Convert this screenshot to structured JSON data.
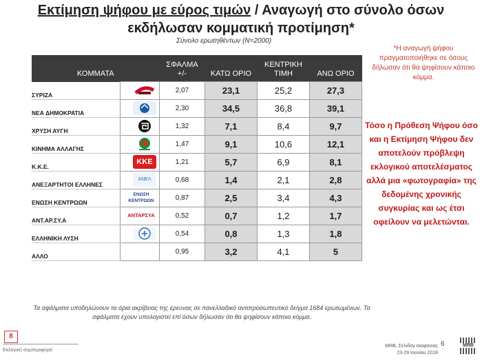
{
  "header": {
    "title_part1": "Εκτίμηση ψήφου με εύρος τιμών",
    "title_part2": " / Αναγωγή στο σύνολο όσων",
    "title_line2": "εκδήλωσαν κομματική προτίμηση*",
    "subtitle": "Σύνολο ερωτηθέντων (N=2000)"
  },
  "table": {
    "headers": {
      "party": "ΚΟΜΜΑΤΑ",
      "error": "ΣΦΑΛΜΑ +/-",
      "low": "ΚΑΤΩ ΟΡΙΟ",
      "mid": "ΚΕΝΤΡΙΚΗ ΤΙΜΗ",
      "high": "ΑΝΩ ΟΡΙΟ"
    },
    "rows": [
      {
        "party": "ΣΥΡΙΖΑ",
        "error": "2,07",
        "low": "23,1",
        "mid": "25,2",
        "high": "27,3"
      },
      {
        "party": "ΝΕΑ ΔΗΜΟΚΡΑΤΙΑ",
        "error": "2,30",
        "low": "34,5",
        "mid": "36,8",
        "high": "39,1"
      },
      {
        "party": "ΧΡΥΣΗ ΑΥΓΗ",
        "error": "1,32",
        "low": "7,1",
        "mid": "8,4",
        "high": "9,7"
      },
      {
        "party": "ΚΙΝΗΜΑ ΑΛΛΑΓΗΣ",
        "error": "1,47",
        "low": "9,1",
        "mid": "10,6",
        "high": "12,1"
      },
      {
        "party": "Κ.Κ.Ε.",
        "error": "1,21",
        "low": "5,7",
        "mid": "6,9",
        "high": "8,1"
      },
      {
        "party": "ΑΝΕΞΑΡΤΗΤΟΙ ΕΛΛΗΝΕΣ",
        "error": "0,68",
        "low": "1,4",
        "mid": "2,1",
        "high": "2,8"
      },
      {
        "party": "ΕΝΩΣΗ ΚΕΝΤΡΩΩΝ",
        "error": "0,87",
        "low": "2,5",
        "mid": "3,4",
        "high": "4,3"
      },
      {
        "party": "ΑΝΤ.ΑΡ.ΣΥ.Α",
        "error": "0,52",
        "low": "0,7",
        "mid": "1,2",
        "high": "1,7"
      },
      {
        "party": "ΕΛΛΗΝΙΚΗ ΛΥΣΗ",
        "error": "0,54",
        "low": "0,8",
        "mid": "1,3",
        "high": "1,8"
      },
      {
        "party": "ΑΛΛΟ",
        "error": "0,95",
        "low": "3,2",
        "mid": "4,1",
        "high": "5"
      }
    ]
  },
  "logos": {
    "row1": {
      "text": "",
      "bg": "#c8102e",
      "fg": "#ffffff"
    },
    "row2": {
      "text": "ΝΕΑ ΔΗΜΟΚΡΑΤΙΑ",
      "bg": "#e8f0fa",
      "fg": "#1f5aa6"
    },
    "row3": {
      "text": "",
      "bg": "#111111",
      "fg": "#ffffff"
    },
    "row4": {
      "text": "",
      "bg": "#ffffff",
      "fg": "#1e8a3c"
    },
    "row5": {
      "text": "ΚΚΕ",
      "bg": "#d81e1e",
      "fg": "#ffffff"
    },
    "row6": {
      "text": "ΑΝΕΛ",
      "bg": "#eef4fb",
      "fg": "#2a6db5"
    },
    "row7": {
      "text": "ΕΝΩΣΗ ΚΕΝΤΡΩΩΝ",
      "bg": "#ffffff",
      "fg": "#1c3f8a"
    },
    "row8": {
      "text": "ΑΝΤΑΡΣΥΑ",
      "bg": "#ffffff",
      "fg": "#c0171b"
    },
    "row9": {
      "text": "",
      "bg": "#f2f6fb",
      "fg": "#2a6db5"
    }
  },
  "notes": {
    "reduction_note": "*Η αναγωγή ψήφου πραγματοποιήθηκε σε όσους δήλωσαν ότι θα ψηφίσουν κάποιο κόμμα.",
    "disclaimer": "Τόσο η Πρόθεση Ψήφου όσο και η Εκτίμηση Ψήφου δεν αποτελούν πρόβλεψη εκλογικού αποτελέσματος αλλά μια «φωτογραφία» της δεδομένης χρονικής συγκυρίας και ως έτσι οφείλουν να μελετώνται."
  },
  "footnote": "Τα σφάλματα υποδηλώνουν τα όρια ακρίβειας της έρευνας σε πανελλαδικό αντιπροσωπευτικό δείγμα 1684 ερωτωμένων. Τα σφάλματα έχουν υπολογιστεί επί όσων δήλωσαν ότι θα ψηφίσουν κάποιο κόμμα.",
  "footer": {
    "slide_number": "8",
    "section": "Εκλογική συμπεριφορά",
    "study": "MRB, Σελιδαγ εκοφανιας",
    "date": "23-29 Ιουνίου 2018",
    "page": "6",
    "logo_text": "MRB"
  },
  "colors": {
    "accent_red": "#c0171b",
    "header_dark": "#3b3b3b",
    "cell_shade": "#d9d9d9"
  }
}
